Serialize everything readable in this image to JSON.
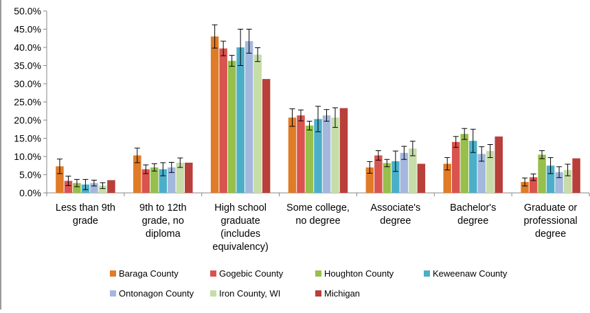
{
  "chart_data": {
    "type": "bar",
    "title": "",
    "xlabel": "",
    "ylabel": "",
    "ylim": [
      0,
      50
    ],
    "yticks": [
      0,
      5,
      10,
      15,
      20,
      25,
      30,
      35,
      40,
      45,
      50
    ],
    "ytick_labels": [
      "0.0%",
      "5.0%",
      "10.0%",
      "15.0%",
      "20.0%",
      "25.0%",
      "30.0%",
      "35.0%",
      "40.0%",
      "45.0%",
      "50.0%"
    ],
    "grid": false,
    "legend_position": "bottom",
    "categories": [
      [
        "Less than 9th",
        "grade"
      ],
      [
        "9th to 12th",
        "grade, no",
        "diploma"
      ],
      [
        "High school",
        "graduate",
        "(includes",
        "equivalency)"
      ],
      [
        "Some college,",
        "no degree"
      ],
      [
        "Associate's",
        "degree"
      ],
      [
        "Bachelor's",
        "degree"
      ],
      [
        "Graduate or",
        "professional",
        "degree"
      ]
    ],
    "series": [
      {
        "name": "Baraga County",
        "color": "#E07B27",
        "values": [
          7.3,
          10.3,
          43.0,
          20.7,
          7.0,
          8.0,
          3.0
        ],
        "errors": [
          2.0,
          2.0,
          3.2,
          2.4,
          1.6,
          1.7,
          1.1
        ]
      },
      {
        "name": "Gogebic County",
        "color": "#D9534F",
        "values": [
          3.3,
          6.5,
          39.7,
          21.3,
          10.3,
          14.0,
          4.3
        ],
        "errors": [
          1.3,
          1.2,
          2.0,
          1.5,
          1.3,
          1.5,
          0.9
        ]
      },
      {
        "name": "Houghton County",
        "color": "#96BF4B",
        "values": [
          2.7,
          7.0,
          36.3,
          18.5,
          8.2,
          16.2,
          10.5
        ],
        "errors": [
          1.0,
          1.0,
          1.5,
          1.2,
          1.0,
          1.5,
          1.1
        ]
      },
      {
        "name": "Keweenaw County",
        "color": "#4BAFC9",
        "values": [
          2.3,
          6.5,
          40.0,
          20.3,
          8.7,
          14.3,
          7.5
        ],
        "errors": [
          1.4,
          1.8,
          5.0,
          3.5,
          2.8,
          3.2,
          2.2
        ]
      },
      {
        "name": "Ontonagon County",
        "color": "#A4B8DE",
        "values": [
          2.7,
          7.0,
          41.7,
          21.3,
          11.0,
          10.7,
          5.7
        ],
        "errors": [
          0.8,
          1.4,
          3.3,
          1.6,
          1.8,
          2.0,
          1.5
        ]
      },
      {
        "name": "Iron County, WI",
        "color": "#C6DDA8",
        "values": [
          2.0,
          8.3,
          38.0,
          20.7,
          12.2,
          11.5,
          6.3
        ],
        "errors": [
          0.8,
          1.3,
          1.9,
          2.7,
          2.0,
          1.8,
          1.6
        ]
      },
      {
        "name": "Michigan",
        "color": "#B83F3A",
        "values": [
          3.5,
          8.3,
          31.3,
          23.3,
          8.0,
          15.5,
          9.5
        ],
        "errors": [
          0.15,
          0.15,
          0.2,
          0.2,
          0.15,
          0.15,
          0.15
        ]
      }
    ]
  }
}
